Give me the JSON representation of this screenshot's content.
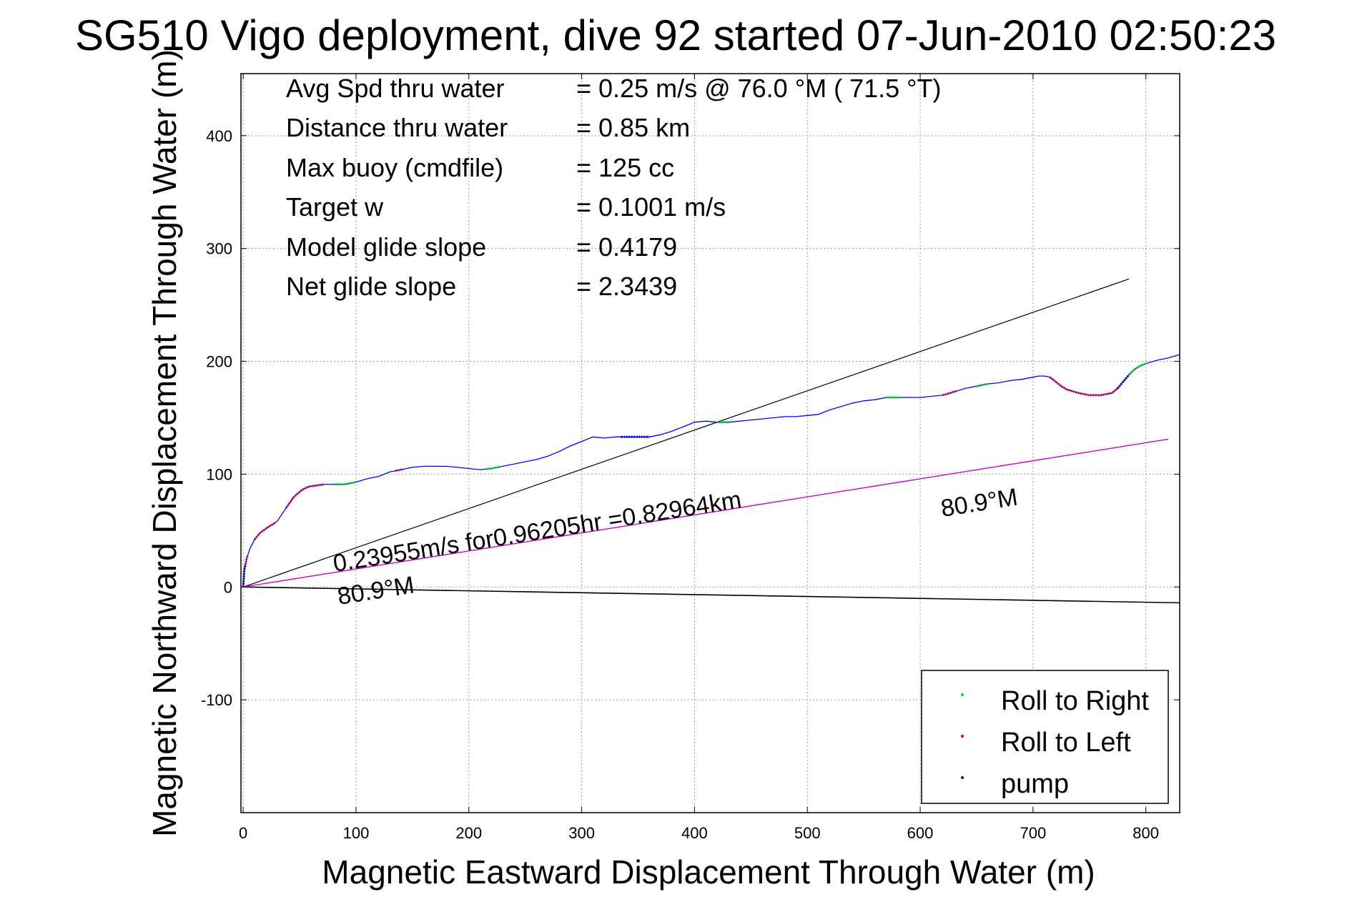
{
  "chart_data": {
    "type": "line",
    "title": "SG510 Vigo deployment, dive 92 started 07-Jun-2010 02:50:23",
    "xlabel": "Magnetic Eastward Displacement Through Water (m)",
    "ylabel": "Magnetic Northward Displacement Through Water (m)",
    "xlim": [
      -2,
      830
    ],
    "ylim": [
      -200,
      455
    ],
    "xticks": [
      0,
      100,
      200,
      300,
      400,
      500,
      600,
      700,
      800
    ],
    "yticks": [
      -100,
      0,
      100,
      200,
      300,
      400
    ],
    "grid": true,
    "legend_position": "bottom-right",
    "info_box": [
      {
        "label": "Avg Spd thru water",
        "value": "=  0.25 m/s @  76.0 °M ( 71.5 °T)"
      },
      {
        "label": "Distance thru water",
        "value": "=  0.85 km"
      },
      {
        "label": "Max buoy (cmdfile)",
        "value": "= 125 cc"
      },
      {
        "label": "Target w",
        "value": "= 0.1001 m/s"
      },
      {
        "label": "Model glide slope",
        "value": "= 0.4179"
      },
      {
        "label": "Net glide slope",
        "value": "= 2.3439"
      }
    ],
    "annotations": {
      "current": "0.23955m/s for0.96205hr =0.82964km",
      "heading_near": "80.9°M",
      "heading_far": "80.9°M"
    },
    "legend": [
      {
        "name": "Roll to Right",
        "color": "#00dd00"
      },
      {
        "name": "Roll to Left",
        "color": "#dd0000"
      },
      {
        "name": "pump",
        "color": "#000080"
      }
    ],
    "colors": {
      "track": "#0000ff",
      "roll_right": "#00dd00",
      "roll_left": "#cc0033",
      "pump": "#000080",
      "current_line": "#cc00cc",
      "heading_lines": "#000000"
    },
    "series": [
      {
        "name": "track",
        "x": [
          0,
          1,
          3,
          6,
          10,
          15,
          22,
          30,
          38,
          45,
          52,
          58,
          65,
          72,
          80,
          90,
          100,
          110,
          120,
          130,
          140,
          150,
          160,
          170,
          180,
          190,
          200,
          210,
          220,
          230,
          240,
          250,
          260,
          270,
          280,
          290,
          300,
          310,
          320,
          330,
          340,
          350,
          360,
          370,
          380,
          390,
          400,
          410,
          420,
          430,
          440,
          450,
          460,
          470,
          480,
          490,
          500,
          510,
          520,
          530,
          540,
          550,
          560,
          570,
          580,
          590,
          600,
          610,
          620,
          630,
          640,
          650,
          660,
          670,
          680,
          690,
          700,
          705,
          710,
          715,
          720,
          725,
          730,
          740,
          750,
          760,
          770,
          775,
          780,
          785,
          790,
          795,
          800,
          810,
          820,
          830
        ],
        "y": [
          0,
          15,
          25,
          34,
          42,
          48,
          53,
          58,
          70,
          80,
          86,
          89,
          90,
          91,
          91,
          91,
          93,
          96,
          98,
          102,
          104,
          106,
          107,
          107,
          107,
          106,
          105,
          104,
          105,
          107,
          109,
          111,
          113,
          116,
          120,
          125,
          129,
          133,
          132,
          133,
          133,
          133,
          133,
          135,
          138,
          142,
          146,
          147,
          146,
          146,
          147,
          148,
          149,
          150,
          151,
          151,
          152,
          153,
          157,
          160,
          163,
          165,
          166,
          168,
          168,
          168,
          168,
          169,
          170,
          173,
          176,
          178,
          180,
          181,
          183,
          184,
          186,
          187,
          187,
          186,
          182,
          178,
          175,
          172,
          170,
          170,
          172,
          176,
          182,
          188,
          193,
          196,
          198,
          201,
          203,
          206
        ]
      },
      {
        "name": "Roll to Right",
        "ranges": [
          [
            80,
            100
          ],
          [
            215,
            228
          ],
          [
            420,
            432
          ],
          [
            570,
            582
          ],
          [
            650,
            660
          ],
          [
            785,
            800
          ]
        ]
      },
      {
        "name": "Roll to Left",
        "ranges": [
          [
            0,
            4
          ],
          [
            10,
            28
          ],
          [
            38,
            72
          ],
          [
            135,
            142
          ],
          [
            620,
            632
          ],
          [
            715,
            775
          ]
        ]
      },
      {
        "name": "pump",
        "ranges": [
          [
            0,
            2
          ],
          [
            335,
            360
          ],
          [
            775,
            785
          ]
        ]
      },
      {
        "name": "current",
        "from": [
          0,
          0
        ],
        "to": [
          820,
          131
        ]
      },
      {
        "name": "heading_upper",
        "from": [
          0,
          0
        ],
        "to": [
          785,
          273
        ]
      },
      {
        "name": "heading_lower",
        "from": [
          0,
          0
        ],
        "to": [
          830,
          -14
        ]
      }
    ]
  }
}
